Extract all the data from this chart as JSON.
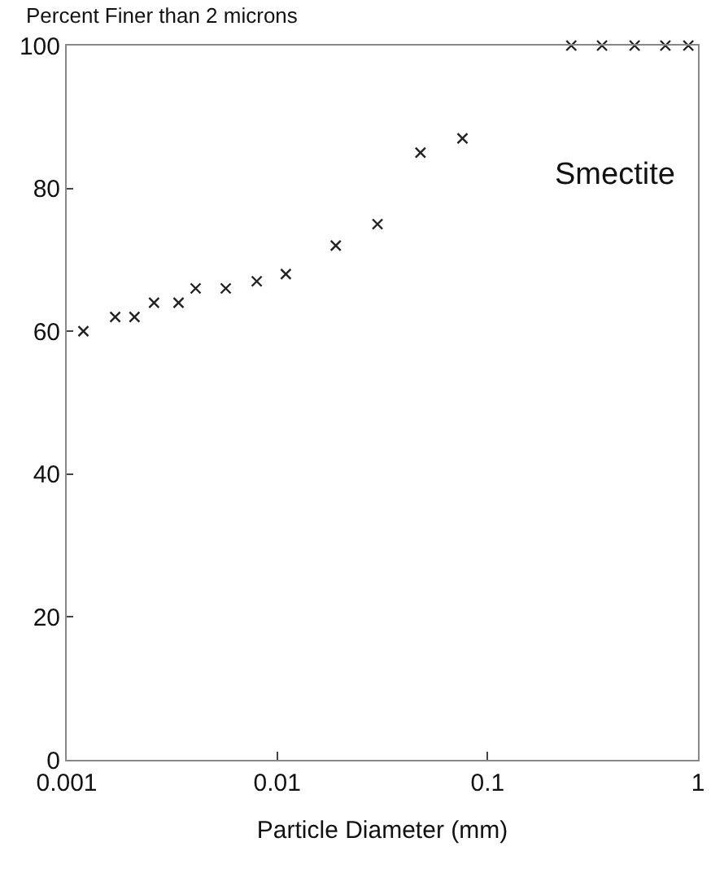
{
  "chart_data": {
    "type": "scatter",
    "ylabel": "Percent Finer than 2 microns",
    "xlabel": "Particle Diameter (mm)",
    "annotations": [
      "Smectite"
    ],
    "x": [
      0.0012,
      0.0017,
      0.0021,
      0.0026,
      0.0034,
      0.0041,
      0.0057,
      0.008,
      0.011,
      0.019,
      0.03,
      0.048,
      0.076,
      0.25,
      0.35,
      0.5,
      0.7,
      0.9
    ],
    "series": [
      {
        "color": "#222222",
        "values": [
          60,
          62,
          62,
          64,
          64,
          66,
          66,
          67,
          68,
          72,
          75,
          85,
          87,
          100,
          100,
          100,
          100,
          100
        ]
      }
    ],
    "log": "x",
    "xlim": [
      0.001,
      1
    ],
    "xticks": [
      0.001,
      0.01,
      0.1,
      1
    ],
    "ylim": [
      0,
      100
    ],
    "yticks": [
      0,
      20,
      40,
      60,
      80,
      100
    ],
    "legend": false,
    "marker": "cross"
  }
}
